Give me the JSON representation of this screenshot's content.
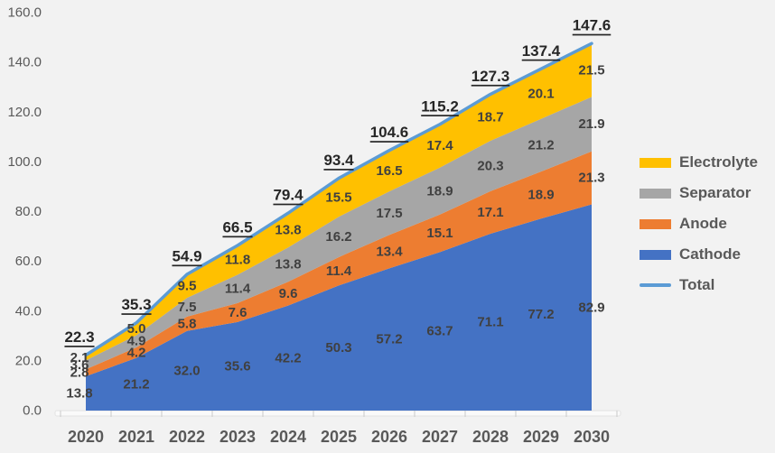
{
  "chart_data": {
    "type": "area",
    "stacked": true,
    "title": "",
    "xlabel": "",
    "ylabel": "",
    "categories": [
      "2020",
      "2021",
      "2022",
      "2023",
      "2024",
      "2025",
      "2026",
      "2027",
      "2028",
      "2029",
      "2030"
    ],
    "series": [
      {
        "name": "Cathode",
        "color": "#4472C4",
        "values": [
          13.8,
          21.2,
          32.0,
          35.6,
          42.2,
          50.3,
          57.2,
          63.7,
          71.1,
          77.2,
          82.9
        ]
      },
      {
        "name": "Anode",
        "color": "#ED7D31",
        "values": [
          2.8,
          4.2,
          5.8,
          7.6,
          9.6,
          11.4,
          13.4,
          15.1,
          17.1,
          18.9,
          21.3
        ]
      },
      {
        "name": "Separator",
        "color": "#A6A6A6",
        "values": [
          3.6,
          4.9,
          7.5,
          11.4,
          13.8,
          16.2,
          17.5,
          18.9,
          20.3,
          21.2,
          21.9
        ]
      },
      {
        "name": "Electrolyte",
        "color": "#FFC000",
        "values": [
          2.1,
          5.0,
          9.5,
          11.8,
          13.8,
          15.5,
          16.5,
          17.4,
          18.7,
          20.1,
          21.5
        ]
      }
    ],
    "total_line": {
      "name": "Total",
      "color": "#5B9BD5",
      "values": [
        22.3,
        35.3,
        54.9,
        66.5,
        79.4,
        93.4,
        104.6,
        115.2,
        127.3,
        137.4,
        147.6
      ]
    },
    "ylim": [
      0,
      160
    ],
    "ytick_step": 20,
    "ytick_labels": [
      "0.0",
      "20.0",
      "40.0",
      "60.0",
      "80.0",
      "100.0",
      "120.0",
      "140.0",
      "160.0"
    ],
    "grid": false,
    "legend_position": "right",
    "legend": [
      {
        "label": "Electrolyte",
        "color": "#FFC000",
        "swatch": "box"
      },
      {
        "label": "Separator",
        "color": "#A6A6A6",
        "swatch": "box"
      },
      {
        "label": "Anode",
        "color": "#ED7D31",
        "swatch": "box"
      },
      {
        "label": "Cathode",
        "color": "#4472C4",
        "swatch": "box"
      },
      {
        "label": "Total",
        "color": "#5B9BD5",
        "swatch": "line"
      }
    ],
    "colors": {
      "axis_text": "#595959",
      "segment_label_text": "#404040",
      "total_label_text": "#262626",
      "axis_line": "#E3E3E3",
      "tick": "#C9C9C9",
      "background": "#F2F2F2"
    }
  }
}
